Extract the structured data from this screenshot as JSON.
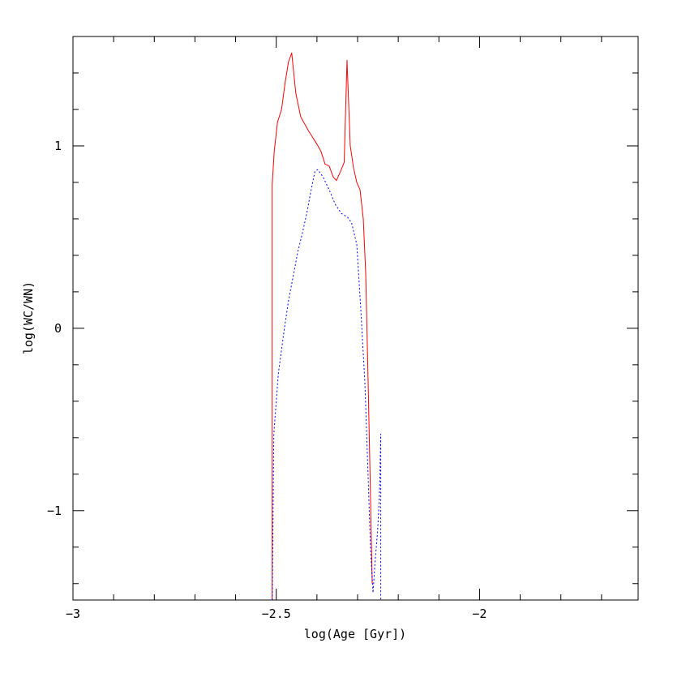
{
  "chart_data": {
    "type": "line",
    "title": "",
    "xlabel": "log(Age [Gyr])",
    "ylabel": "log(WC/WN)",
    "xlim": [
      -3.0,
      -1.61
    ],
    "ylim": [
      -1.49,
      1.6
    ],
    "x_major_ticks": [
      -3,
      -2.5,
      -2
    ],
    "x_tick_labels": [
      "−3",
      "−2.5",
      "−2"
    ],
    "x_minor_step": 0.1,
    "y_major_ticks": [
      -1,
      0,
      1
    ],
    "y_tick_labels": [
      "−1",
      "0",
      "1"
    ],
    "y_minor_step": 0.2,
    "grid": false,
    "series": [
      {
        "color": "#ff0000",
        "style": "solid",
        "points": [
          [
            -2.51,
            -1.49
          ],
          [
            -2.51,
            0.79
          ],
          [
            -2.505,
            0.97
          ],
          [
            -2.497,
            1.13
          ],
          [
            -2.487,
            1.2
          ],
          [
            -2.478,
            1.35
          ],
          [
            -2.47,
            1.46
          ],
          [
            -2.462,
            1.51
          ],
          [
            -2.452,
            1.29
          ],
          [
            -2.44,
            1.16
          ],
          [
            -2.42,
            1.08
          ],
          [
            -2.4,
            1.01
          ],
          [
            -2.39,
            0.97
          ],
          [
            -2.38,
            0.9
          ],
          [
            -2.37,
            0.89
          ],
          [
            -2.36,
            0.83
          ],
          [
            -2.352,
            0.81
          ],
          [
            -2.342,
            0.86
          ],
          [
            -2.333,
            0.91
          ],
          [
            -2.326,
            1.47
          ],
          [
            -2.318,
            1.0
          ],
          [
            -2.31,
            0.88
          ],
          [
            -2.302,
            0.8
          ],
          [
            -2.294,
            0.76
          ],
          [
            -2.286,
            0.6
          ],
          [
            -2.28,
            0.3
          ],
          [
            -2.274,
            -0.3
          ],
          [
            -2.268,
            -0.95
          ],
          [
            -2.264,
            -1.4
          ]
        ]
      },
      {
        "color": "#0000ff",
        "style": "dotted",
        "points": [
          [
            -2.51,
            -1.49
          ],
          [
            -2.506,
            -0.58
          ],
          [
            -2.495,
            -0.25
          ],
          [
            -2.48,
            0.0
          ],
          [
            -2.47,
            0.15
          ],
          [
            -2.458,
            0.29
          ],
          [
            -2.447,
            0.42
          ],
          [
            -2.436,
            0.52
          ],
          [
            -2.425,
            0.63
          ],
          [
            -2.415,
            0.75
          ],
          [
            -2.405,
            0.86
          ],
          [
            -2.398,
            0.87
          ],
          [
            -2.385,
            0.83
          ],
          [
            -2.37,
            0.76
          ],
          [
            -2.355,
            0.68
          ],
          [
            -2.34,
            0.63
          ],
          [
            -2.325,
            0.61
          ],
          [
            -2.315,
            0.58
          ],
          [
            -2.302,
            0.46
          ],
          [
            -2.292,
            0.1
          ],
          [
            -2.282,
            -0.3
          ],
          [
            -2.274,
            -0.82
          ],
          [
            -2.268,
            -1.22
          ],
          [
            -2.262,
            -1.45
          ],
          [
            -2.257,
            -1.28
          ],
          [
            -2.251,
            -1.12
          ],
          [
            -2.247,
            -0.95
          ],
          [
            -2.245,
            -0.8
          ],
          [
            -2.243,
            -0.58
          ],
          [
            -2.243,
            -1.49
          ]
        ]
      }
    ]
  }
}
